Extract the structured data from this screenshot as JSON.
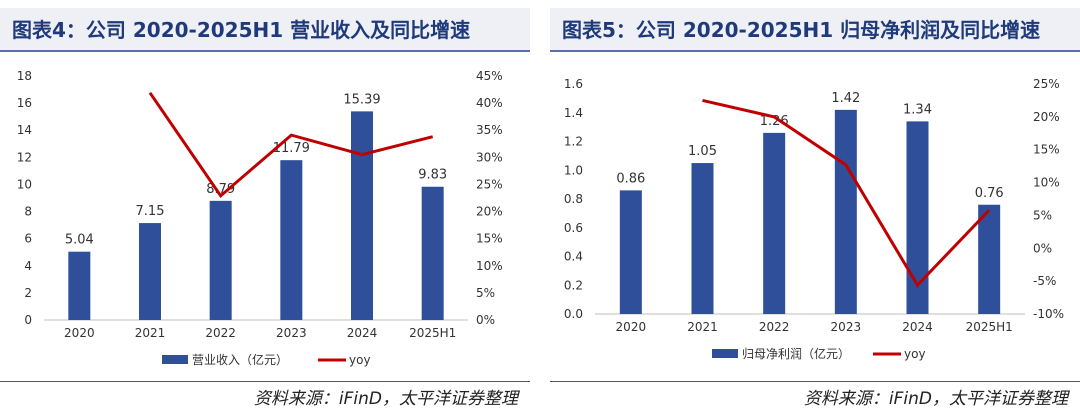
{
  "chart_data": [
    {
      "type": "bar",
      "title": "图表4：公司 2020-2025H1 营业收入及同比增速",
      "categories": [
        "2020",
        "2021",
        "2022",
        "2023",
        "2024",
        "2025H1"
      ],
      "series": [
        {
          "name": "营业收入（亿元）",
          "type": "bar",
          "axis": "left",
          "values": [
            5.04,
            7.15,
            8.79,
            11.79,
            15.39,
            9.83
          ],
          "labels": [
            "5.04",
            "7.15",
            "8.79",
            "11.79",
            "15.39",
            "9.83"
          ]
        },
        {
          "name": "yoy",
          "type": "line",
          "axis": "right",
          "values": [
            null,
            41.9,
            22.9,
            34.1,
            30.5,
            33.8
          ]
        }
      ],
      "y_left": {
        "min": 0,
        "max": 18,
        "step": 2,
        "ticks": [
          "0",
          "2",
          "4",
          "6",
          "8",
          "10",
          "12",
          "14",
          "16",
          "18"
        ]
      },
      "y_right": {
        "min": 0,
        "max": 45,
        "step": 5,
        "ticks": [
          "0%",
          "5%",
          "10%",
          "15%",
          "20%",
          "25%",
          "30%",
          "35%",
          "40%",
          "45%"
        ]
      },
      "colors": {
        "bar": "#2f4f9a",
        "line": "#c00000"
      },
      "legend_position": "bottom",
      "source": "资料来源：iFinD，太平洋证券整理"
    },
    {
      "type": "bar",
      "title": "图表5：公司 2020-2025H1 归母净利润及同比增速",
      "categories": [
        "2020",
        "2021",
        "2022",
        "2023",
        "2024",
        "2025H1"
      ],
      "series": [
        {
          "name": "归母净利润（亿元）",
          "type": "bar",
          "axis": "left",
          "values": [
            0.86,
            1.05,
            1.26,
            1.42,
            1.34,
            0.76
          ],
          "labels": [
            "0.86",
            "1.05",
            "1.26",
            "1.42",
            "1.34",
            "0.76"
          ]
        },
        {
          "name": "yoy",
          "type": "line",
          "axis": "right",
          "values": [
            null,
            22.5,
            20.0,
            12.7,
            -5.6,
            5.8
          ]
        }
      ],
      "y_left": {
        "min": 0,
        "max": 1.6,
        "step": 0.2,
        "ticks": [
          "0.0",
          "0.2",
          "0.4",
          "0.6",
          "0.8",
          "1.0",
          "1.2",
          "1.4",
          "1.6"
        ]
      },
      "y_right": {
        "min": -10,
        "max": 25,
        "step": 5,
        "ticks": [
          "-10%",
          "-5%",
          "0%",
          "5%",
          "10%",
          "15%",
          "20%",
          "25%"
        ]
      },
      "colors": {
        "bar": "#2f4f9a",
        "line": "#c00000"
      },
      "legend_position": "bottom",
      "source": "资料来源：iFinD，太平洋证券整理"
    }
  ]
}
